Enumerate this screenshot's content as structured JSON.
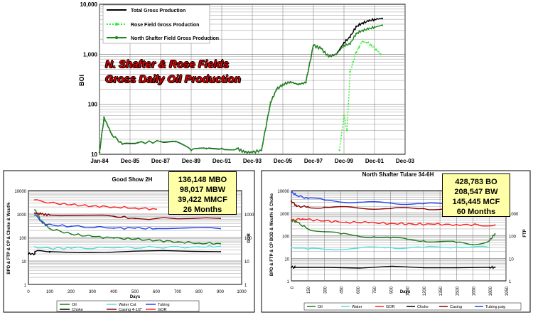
{
  "chart_data": [
    {
      "type": "line",
      "title": [
        "N. Shafter & Rose Fields",
        "Gross Daily Oil Production"
      ],
      "ylabel": "BOI",
      "yscale": "log",
      "ylim": [
        10,
        10000
      ],
      "yticks": [
        "10",
        "100",
        "1,000",
        "10,000"
      ],
      "xlim": [
        1984.0,
        2004.0
      ],
      "xticks": [
        "Jan-84",
        "Dec-85",
        "Dec-87",
        "Dec-89",
        "Dec-91",
        "Dec-93",
        "Dec-95",
        "Dec-97",
        "Dec-99",
        "Dec-01",
        "Dec-03"
      ],
      "grid": true,
      "legend": "top-left",
      "series": [
        {
          "name": "Total Gross Production",
          "color": "#000000",
          "x": [
            1984.0,
            1984.3,
            1984.8,
            1985.5,
            1986.5,
            1988.0,
            1989.0,
            1990.0,
            1991.0,
            1992.0,
            1993.0,
            1993.5,
            1994.0,
            1994.6,
            1995.2,
            1995.6,
            1996.0,
            1996.5,
            1997.0,
            1997.5,
            1998.0,
            1998.5,
            1999.0,
            1999.5,
            2000.0,
            2000.4,
            2000.8,
            2001.2,
            2001.6,
            2002.0,
            2002.5
          ],
          "y": [
            11,
            55,
            25,
            16,
            17,
            18,
            18,
            12,
            13,
            13,
            13,
            11,
            11,
            12,
            110,
            200,
            250,
            280,
            250,
            270,
            1500,
            1300,
            900,
            1000,
            1700,
            2200,
            3600,
            4200,
            4600,
            5000,
            5200
          ]
        },
        {
          "name": "Rose Field Gross Production",
          "color": "#33ee33",
          "x": [
            1999.7,
            2000.0,
            2000.2,
            2000.4,
            2000.6,
            2000.8,
            2001.0,
            2001.2,
            2001.5,
            2001.8,
            2002.1,
            2002.4
          ],
          "y": [
            12,
            60,
            30,
            450,
            700,
            1100,
            1400,
            1800,
            1700,
            1500,
            1250,
            1000
          ]
        },
        {
          "name": "North Shafter Field Gross Production",
          "color": "#1d8a1d",
          "x": [
            1984.0,
            1984.3,
            1984.8,
            1985.5,
            1986.5,
            1988.0,
            1989.0,
            1990.0,
            1991.0,
            1992.0,
            1993.0,
            1993.5,
            1994.0,
            1994.6,
            1995.2,
            1995.6,
            1996.0,
            1996.5,
            1997.0,
            1997.5,
            1998.0,
            1998.5,
            1999.0,
            1999.5,
            2000.0,
            2000.4,
            2000.8,
            2001.2,
            2001.6,
            2002.0,
            2002.5
          ],
          "y": [
            11,
            55,
            25,
            16,
            17,
            18,
            18,
            12,
            13,
            13,
            13,
            11,
            11,
            12,
            110,
            200,
            250,
            280,
            250,
            270,
            1500,
            1300,
            900,
            1000,
            1500,
            1600,
            2600,
            3000,
            3200,
            3500,
            3800
          ]
        }
      ]
    },
    {
      "type": "line",
      "title": "Good Show 2H",
      "ylabel": "BPD & FTP & CP & Choke & Wcut%",
      "y2label": "GOR",
      "xlabel": "Days",
      "yscale": "log",
      "ylim": [
        1,
        10000
      ],
      "yticks": [
        "1",
        "10",
        "100",
        "1000",
        "10000"
      ],
      "y2ticks": [
        "1",
        "10",
        "100",
        "1000"
      ],
      "xlim": [
        0,
        1000
      ],
      "xticks": [
        "0",
        "100",
        "200",
        "300",
        "400",
        "500",
        "600",
        "700",
        "800",
        "900",
        "1000"
      ],
      "info": [
        "136,148 MBO",
        "98,017 MBW",
        "39,422 MMCF",
        "26 Months"
      ],
      "legend": "bottom",
      "series": [
        {
          "name": "Oil",
          "color": "#1d7a1d",
          "x": [
            30,
            60,
            100,
            200,
            300,
            400,
            500,
            600,
            700,
            800,
            900
          ],
          "y": [
            1500,
            500,
            240,
            140,
            110,
            95,
            85,
            75,
            65,
            58,
            55
          ]
        },
        {
          "name": "Choke",
          "color": "#000000",
          "x": [
            0,
            30,
            31,
            100,
            101,
            900
          ],
          "y": [
            20,
            20,
            25,
            25,
            25,
            25
          ]
        },
        {
          "name": "Water Cut",
          "color": "#55dddd",
          "x": [
            30,
            100,
            200,
            400,
            600,
            800,
            900
          ],
          "y": [
            40,
            35,
            35,
            36,
            38,
            40,
            42
          ]
        },
        {
          "name": "Casing 4-1/2\"",
          "color": "#8b0000",
          "x": [
            30,
            60,
            100,
            400,
            500,
            900
          ],
          "y": [
            1100,
            1000,
            900,
            800,
            650,
            650
          ]
        },
        {
          "name": "Tubing",
          "color": "#2244ee",
          "x": [
            30,
            80,
            200,
            400,
            500,
            600,
            900
          ],
          "y": [
            900,
            350,
            300,
            250,
            250,
            240,
            240
          ]
        },
        {
          "name": "GOR",
          "color": "#ff2222",
          "x": [
            30,
            100,
            200,
            300,
            400,
            500,
            600
          ],
          "y": [
            4000,
            3000,
            2500,
            2200,
            2000,
            1800,
            1600
          ]
        }
      ]
    },
    {
      "type": "line",
      "title": "North Shafter Tulare 34-6H",
      "ylabel": "BPD & FTP & CP BOD & Wcut% & Choke",
      "y2label": "FTP",
      "xlabel": "Days",
      "yscale": "log",
      "ylim": [
        1,
        10000
      ],
      "yticks": [
        "1",
        "10",
        "100",
        "1000",
        "10000"
      ],
      "y2ticks": [
        "1",
        "10",
        "100",
        "1000"
      ],
      "xlim": [
        0,
        1950
      ],
      "xticks": [
        "0",
        "150",
        "300",
        "450",
        "600",
        "750",
        "900",
        "1050",
        "1200",
        "1350",
        "1500",
        "1650",
        "1800",
        "1950"
      ],
      "info": [
        "428,783 BO",
        "208,547 BW",
        "145,445 MCF",
        "60 Months"
      ],
      "legend": "bottom",
      "series": [
        {
          "name": "Oil",
          "color": "#1d7a1d",
          "x": [
            0,
            50,
            150,
            300,
            450,
            600,
            750,
            900,
            1050,
            1200,
            1350,
            1500,
            1650,
            1800,
            1850
          ],
          "y": [
            500,
            400,
            200,
            150,
            120,
            100,
            90,
            80,
            70,
            60,
            55,
            50,
            40,
            60,
            120
          ]
        },
        {
          "name": "Water",
          "color": "#55dddd",
          "x": [
            0,
            150,
            300,
            600,
            900,
            1200,
            1500,
            1800
          ],
          "y": [
            30,
            25,
            25,
            28,
            30,
            30,
            32,
            30
          ]
        },
        {
          "name": "GOR",
          "color": "#ff2222",
          "x": [
            0,
            100,
            300,
            500,
            700,
            900,
            1100,
            1300,
            1500,
            1700,
            1850
          ],
          "y": [
            500,
            550,
            450,
            400,
            380,
            350,
            330,
            320,
            310,
            300,
            300
          ]
        },
        {
          "name": "Choke",
          "color": "#000000",
          "x": [
            0,
            30,
            31,
            1800,
            1850
          ],
          "y": [
            4,
            4,
            4,
            4,
            4
          ]
        },
        {
          "name": "Casing",
          "color": "#8b0000",
          "x": [
            0,
            50,
            150,
            300,
            600,
            900,
            1200,
            1500,
            1800
          ],
          "y": [
            3500,
            2000,
            1900,
            1800,
            1700,
            1600,
            1600,
            1500,
            1500
          ]
        },
        {
          "name": "Tubing psig",
          "color": "#2244ee",
          "x": [
            0,
            50,
            150,
            300,
            600,
            900,
            1200,
            1500,
            1800
          ],
          "y": [
            8500,
            6000,
            4500,
            3800,
            3000,
            2800,
            2600,
            2400,
            2200
          ]
        }
      ]
    }
  ]
}
